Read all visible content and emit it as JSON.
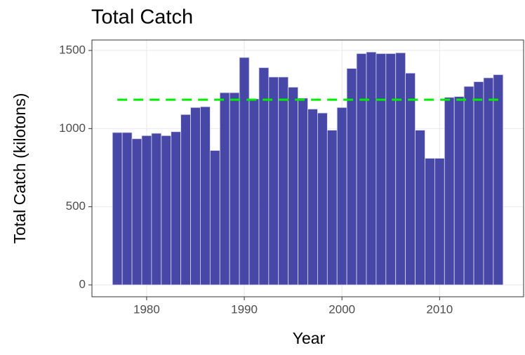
{
  "chart_data": {
    "type": "bar",
    "title": "Total Catch",
    "x_label": "Year",
    "y_label": "Total Catch (kilotons)",
    "x": [
      1977,
      1978,
      1979,
      1980,
      1981,
      1982,
      1983,
      1984,
      1985,
      1986,
      1987,
      1988,
      1989,
      1990,
      1991,
      1992,
      1993,
      1994,
      1995,
      1996,
      1997,
      1998,
      1999,
      2000,
      2001,
      2002,
      2003,
      2004,
      2005,
      2006,
      2007,
      2008,
      2009,
      2010,
      2011,
      2012,
      2013,
      2014,
      2015,
      2016
    ],
    "values": [
      975,
      975,
      935,
      955,
      970,
      955,
      980,
      1090,
      1135,
      1140,
      860,
      1230,
      1230,
      1455,
      1190,
      1390,
      1330,
      1330,
      1265,
      1195,
      1125,
      1100,
      990,
      1135,
      1385,
      1480,
      1490,
      1480,
      1480,
      1485,
      1355,
      990,
      810,
      810,
      1200,
      1205,
      1270,
      1300,
      1325,
      1345
    ],
    "color": "#3d3da3",
    "mean_line": {
      "value": 1185,
      "color": "#00ee00"
    },
    "xlim": [
      1974.4,
      2018.6
    ],
    "ylim": [
      -76,
      1567
    ],
    "xticks": [
      1980,
      1990,
      2000,
      2010
    ],
    "yticks": [
      0,
      500,
      1000,
      1500
    ],
    "grid": true
  }
}
